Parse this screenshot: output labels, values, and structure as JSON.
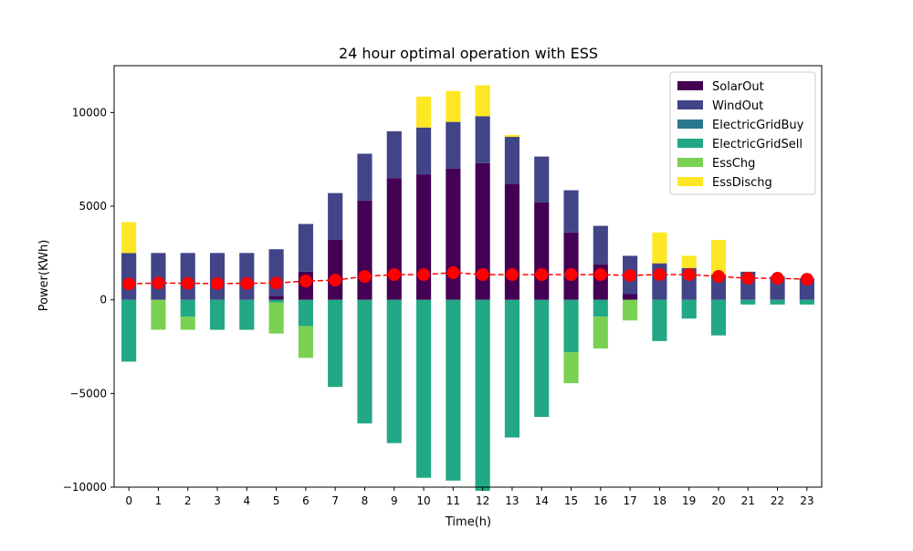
{
  "chart_data": {
    "type": "bar",
    "title": "24 hour optimal operation with ESS",
    "xlabel": "Time(h)",
    "ylabel": "Power(KWh)",
    "ylim": [
      -10000,
      12500
    ],
    "yticks": [
      -10000,
      -5000,
      0,
      5000,
      10000
    ],
    "yticklabels": [
      "−10000",
      "−5000",
      "0",
      "5000",
      "10000"
    ],
    "categories": [
      "0",
      "1",
      "2",
      "3",
      "4",
      "5",
      "6",
      "7",
      "8",
      "9",
      "10",
      "11",
      "12",
      "13",
      "14",
      "15",
      "16",
      "17",
      "18",
      "19",
      "20",
      "21",
      "22",
      "23"
    ],
    "grid": false,
    "legend_position": "top-right",
    "series": [
      {
        "name": "SolarOut",
        "color": "#440154",
        "values": [
          0,
          0,
          0,
          0,
          0,
          200,
          1500,
          3200,
          5300,
          6500,
          6700,
          7000,
          7300,
          6200,
          5200,
          3600,
          1900,
          300,
          0,
          0,
          0,
          0,
          0,
          0
        ]
      },
      {
        "name": "WindOut",
        "color": "#414487",
        "values": [
          2500,
          2500,
          2500,
          2500,
          2500,
          2500,
          2550,
          2500,
          2500,
          2500,
          2500,
          2500,
          2500,
          2500,
          2450,
          2250,
          2050,
          2050,
          1950,
          1700,
          1350,
          1500,
          1250,
          1150
        ]
      },
      {
        "name": "ElectricGridBuy",
        "color": "#2a788e",
        "values": [
          0,
          0,
          0,
          0,
          0,
          0,
          0,
          0,
          0,
          0,
          0,
          0,
          0,
          0,
          0,
          0,
          0,
          0,
          0,
          0,
          0,
          0,
          0,
          0
        ]
      },
      {
        "name": "ElectricGridSell",
        "color": "#22a884",
        "values": [
          -3300,
          0,
          -900,
          -1600,
          -1600,
          -150,
          -1400,
          -4650,
          -6600,
          -7650,
          -9500,
          -9650,
          -10200,
          -7350,
          -6250,
          -2800,
          -900,
          0,
          -2200,
          -1000,
          -1900,
          -250,
          -250,
          -250
        ]
      },
      {
        "name": "EssChg",
        "color": "#7ad151",
        "values": [
          0,
          -1600,
          -700,
          0,
          0,
          -1650,
          -1700,
          0,
          0,
          0,
          0,
          0,
          0,
          0,
          0,
          -1650,
          -1700,
          -1100,
          0,
          0,
          0,
          0,
          0,
          0
        ]
      },
      {
        "name": "EssDischg",
        "color": "#fde725",
        "values": [
          1650,
          0,
          0,
          0,
          0,
          0,
          0,
          0,
          0,
          0,
          1650,
          1650,
          1650,
          100,
          0,
          0,
          0,
          0,
          1650,
          650,
          1850,
          0,
          0,
          0
        ]
      }
    ],
    "line": {
      "color": "#ff0000",
      "style": "dashed",
      "marker": "circle",
      "values": [
        850,
        900,
        880,
        870,
        880,
        900,
        1000,
        1050,
        1250,
        1350,
        1350,
        1450,
        1350,
        1350,
        1350,
        1350,
        1350,
        1300,
        1350,
        1350,
        1250,
        1150,
        1150,
        1100
      ]
    }
  }
}
